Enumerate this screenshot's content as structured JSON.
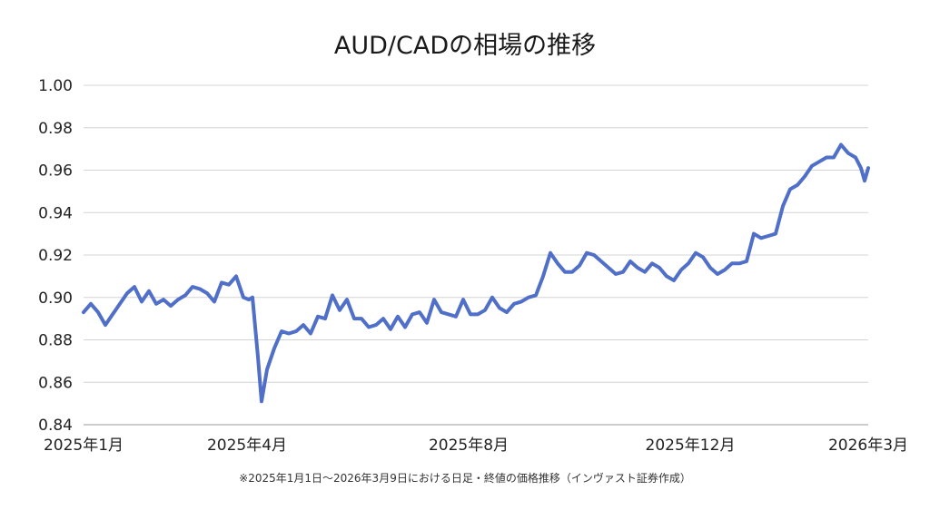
{
  "chart_data": {
    "type": "line",
    "title": "AUD/CADの相場の推移",
    "note": "※2025年1月1日〜2026年3月9日における日足・終値の価格推移（インヴァスト証券作成）",
    "xlabel": "",
    "ylabel": "",
    "ylim": [
      0.84,
      1.0
    ],
    "yticks": [
      "0.84",
      "0.86",
      "0.88",
      "0.90",
      "0.92",
      "0.94",
      "0.96",
      "0.98",
      "1.00"
    ],
    "xticks": [
      {
        "date": "2025-01-01",
        "label": "2025年1月"
      },
      {
        "date": "2025-04-01",
        "label": "2025年4月"
      },
      {
        "date": "2025-08-01",
        "label": "2025年8月"
      },
      {
        "date": "2025-12-01",
        "label": "2025年12月"
      },
      {
        "date": "2026-03-09",
        "label": "2026年3月"
      }
    ],
    "grid": true,
    "line_color": "#4f6fc8",
    "series": [
      {
        "x": [
          "2025-01-01",
          "2025-01-05",
          "2025-01-09",
          "2025-01-13",
          "2025-01-17",
          "2025-01-21",
          "2025-01-25",
          "2025-01-29",
          "2025-02-02",
          "2025-02-06",
          "2025-02-10",
          "2025-02-14",
          "2025-02-18",
          "2025-02-22",
          "2025-02-26",
          "2025-03-02",
          "2025-03-06",
          "2025-03-10",
          "2025-03-14",
          "2025-03-18",
          "2025-03-22",
          "2025-03-26",
          "2025-03-30",
          "2025-04-02",
          "2025-04-04",
          "2025-04-07",
          "2025-04-09",
          "2025-04-12",
          "2025-04-16",
          "2025-04-20",
          "2025-04-24",
          "2025-04-28",
          "2025-05-02",
          "2025-05-06",
          "2025-05-10",
          "2025-05-14",
          "2025-05-18",
          "2025-05-22",
          "2025-05-26",
          "2025-05-30",
          "2025-06-03",
          "2025-06-07",
          "2025-06-11",
          "2025-06-15",
          "2025-06-19",
          "2025-06-23",
          "2025-06-27",
          "2025-07-01",
          "2025-07-05",
          "2025-07-09",
          "2025-07-13",
          "2025-07-17",
          "2025-07-21",
          "2025-07-25",
          "2025-07-29",
          "2025-08-02",
          "2025-08-06",
          "2025-08-10",
          "2025-08-14",
          "2025-08-18",
          "2025-08-22",
          "2025-08-26",
          "2025-08-30",
          "2025-09-03",
          "2025-09-07",
          "2025-09-11",
          "2025-09-15",
          "2025-09-19",
          "2025-09-23",
          "2025-09-27",
          "2025-10-01",
          "2025-10-05",
          "2025-10-09",
          "2025-10-13",
          "2025-10-17",
          "2025-10-21",
          "2025-10-25",
          "2025-10-29",
          "2025-11-02",
          "2025-11-06",
          "2025-11-10",
          "2025-11-14",
          "2025-11-18",
          "2025-11-22",
          "2025-11-26",
          "2025-11-30",
          "2025-12-04",
          "2025-12-08",
          "2025-12-12",
          "2025-12-16",
          "2025-12-20",
          "2025-12-24",
          "2025-12-28",
          "2026-01-01",
          "2026-01-05",
          "2026-01-09",
          "2026-01-13",
          "2026-01-17",
          "2026-01-21",
          "2026-01-25",
          "2026-01-29",
          "2026-02-02",
          "2026-02-06",
          "2026-02-10",
          "2026-02-14",
          "2026-02-18",
          "2026-02-22",
          "2026-02-26",
          "2026-03-02",
          "2026-03-05",
          "2026-03-07",
          "2026-03-09"
        ],
        "values": [
          0.893,
          0.897,
          0.893,
          0.887,
          0.892,
          0.897,
          0.902,
          0.905,
          0.898,
          0.903,
          0.897,
          0.899,
          0.896,
          0.899,
          0.901,
          0.905,
          0.904,
          0.902,
          0.898,
          0.907,
          0.906,
          0.91,
          0.9,
          0.899,
          0.9,
          0.872,
          0.851,
          0.866,
          0.876,
          0.884,
          0.883,
          0.884,
          0.887,
          0.883,
          0.891,
          0.89,
          0.901,
          0.894,
          0.899,
          0.89,
          0.89,
          0.886,
          0.887,
          0.89,
          0.885,
          0.891,
          0.886,
          0.892,
          0.893,
          0.888,
          0.899,
          0.893,
          0.892,
          0.891,
          0.899,
          0.892,
          0.892,
          0.894,
          0.9,
          0.895,
          0.893,
          0.897,
          0.898,
          0.9,
          0.901,
          0.91,
          0.921,
          0.916,
          0.912,
          0.912,
          0.915,
          0.921,
          0.92,
          0.917,
          0.914,
          0.911,
          0.912,
          0.917,
          0.914,
          0.912,
          0.916,
          0.914,
          0.91,
          0.908,
          0.913,
          0.916,
          0.921,
          0.919,
          0.914,
          0.911,
          0.913,
          0.916,
          0.916,
          0.917,
          0.93,
          0.928,
          0.929,
          0.93,
          0.943,
          0.951,
          0.953,
          0.957,
          0.962,
          0.964,
          0.966,
          0.966,
          0.972,
          0.968,
          0.966,
          0.961,
          0.955,
          0.961
        ]
      }
    ]
  }
}
